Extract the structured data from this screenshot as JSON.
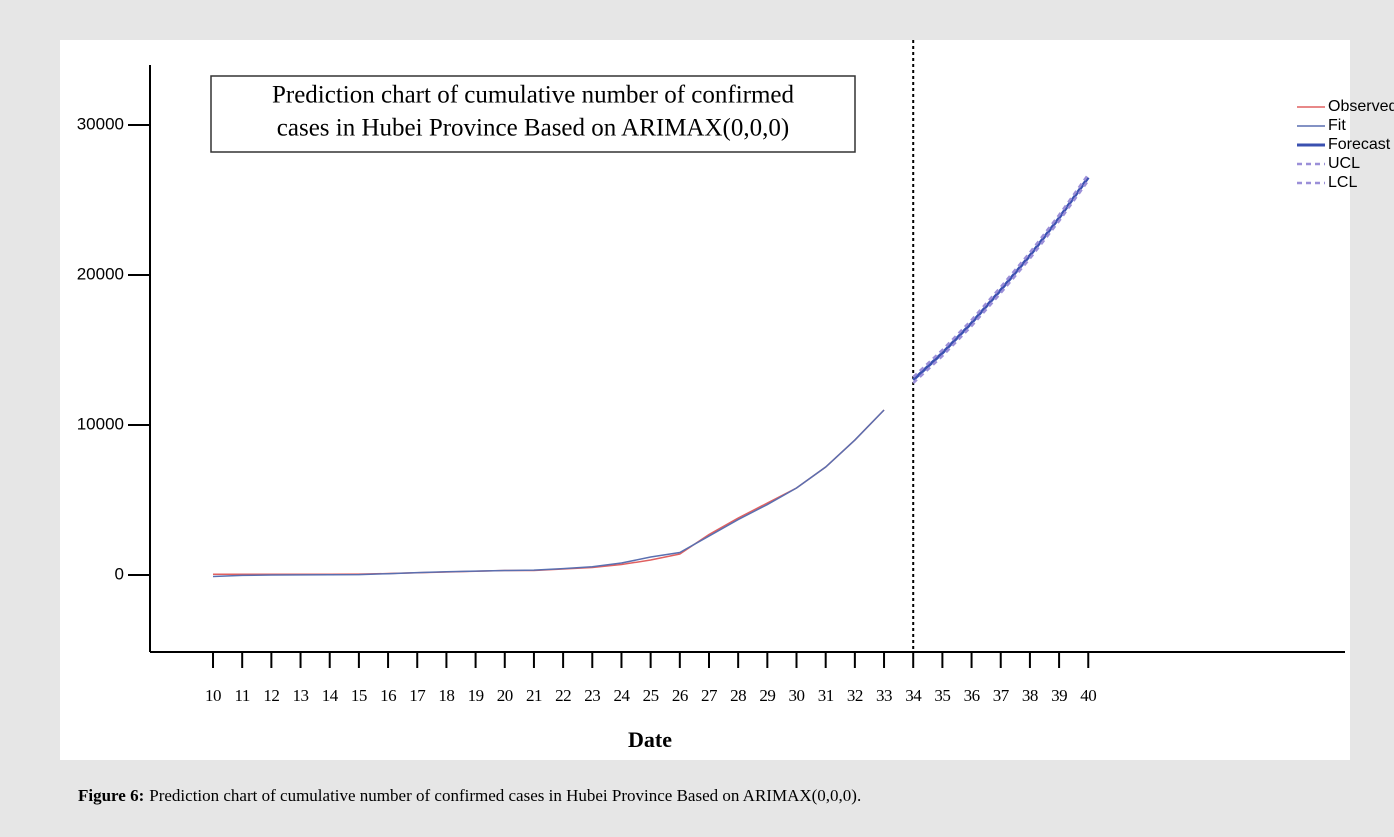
{
  "chart_data": {
    "type": "line",
    "title_lines": [
      "Prediction chart of cumulative number of confirmed",
      "cases in Hubei Province Based on ARIMAX(0,0,0)"
    ],
    "x_label": "Date",
    "caption_label": "Figure 6:",
    "caption": "Prediction chart of cumulative number of confirmed cases in Hubei Province Based on ARIMAX(0,0,0).",
    "x": [
      10,
      11,
      12,
      13,
      14,
      15,
      16,
      17,
      18,
      19,
      20,
      21,
      22,
      23,
      24,
      25,
      26,
      27,
      28,
      29,
      30,
      31,
      32,
      33,
      34,
      35,
      36,
      37,
      38,
      39,
      40
    ],
    "series": [
      {
        "name": "Observed",
        "color": "#e06060",
        "width": 1.5,
        "dash": false,
        "values": [
          50,
          50,
          50,
          50,
          50,
          60,
          100,
          150,
          200,
          250,
          300,
          300,
          400,
          500,
          700,
          1000,
          1400,
          2700,
          3800,
          4800,
          5800,
          7200,
          9000,
          11000,
          null,
          null,
          null,
          null,
          null,
          null,
          null
        ]
      },
      {
        "name": "Fit",
        "color": "#5a6fb0",
        "width": 1.5,
        "dash": false,
        "values": [
          -100,
          -20,
          0,
          10,
          20,
          30,
          90,
          160,
          220,
          260,
          300,
          330,
          430,
          550,
          800,
          1200,
          1500,
          2600,
          3700,
          4700,
          5800,
          7200,
          9000,
          11000,
          null,
          null,
          null,
          null,
          null,
          null,
          null
        ]
      },
      {
        "name": "Forecast",
        "color": "#3a50b0",
        "width": 3,
        "dash": false,
        "values": [
          null,
          null,
          null,
          null,
          null,
          null,
          null,
          null,
          null,
          null,
          null,
          null,
          null,
          null,
          null,
          null,
          null,
          null,
          null,
          null,
          null,
          null,
          null,
          null,
          13000,
          14800,
          16800,
          19000,
          21300,
          23800,
          26500
        ]
      },
      {
        "name": "UCL",
        "color": "#9b8fd8",
        "width": 2.5,
        "dash": true,
        "values": [
          null,
          null,
          null,
          null,
          null,
          null,
          null,
          null,
          null,
          null,
          null,
          null,
          null,
          null,
          null,
          null,
          null,
          null,
          null,
          null,
          null,
          null,
          null,
          null,
          13200,
          15000,
          17000,
          19200,
          21500,
          24000,
          26700
        ]
      },
      {
        "name": "LCL",
        "color": "#9b8fd8",
        "width": 2.5,
        "dash": true,
        "values": [
          null,
          null,
          null,
          null,
          null,
          null,
          null,
          null,
          null,
          null,
          null,
          null,
          null,
          null,
          null,
          null,
          null,
          null,
          null,
          null,
          null,
          null,
          null,
          null,
          12800,
          14600,
          16600,
          18800,
          21100,
          23600,
          26300
        ]
      }
    ],
    "forecast_start": 34,
    "xlim": [
      7.84,
      48.8
    ],
    "xticks": [
      10,
      11,
      12,
      13,
      14,
      15,
      16,
      17,
      18,
      19,
      20,
      21,
      22,
      23,
      24,
      25,
      26,
      27,
      28,
      29,
      30,
      31,
      32,
      33,
      34,
      35,
      36,
      37,
      38,
      39,
      40
    ],
    "ylim": [
      -5130,
      34000
    ],
    "yticks": [
      0,
      10000,
      20000,
      30000
    ],
    "legend": "top-right"
  }
}
